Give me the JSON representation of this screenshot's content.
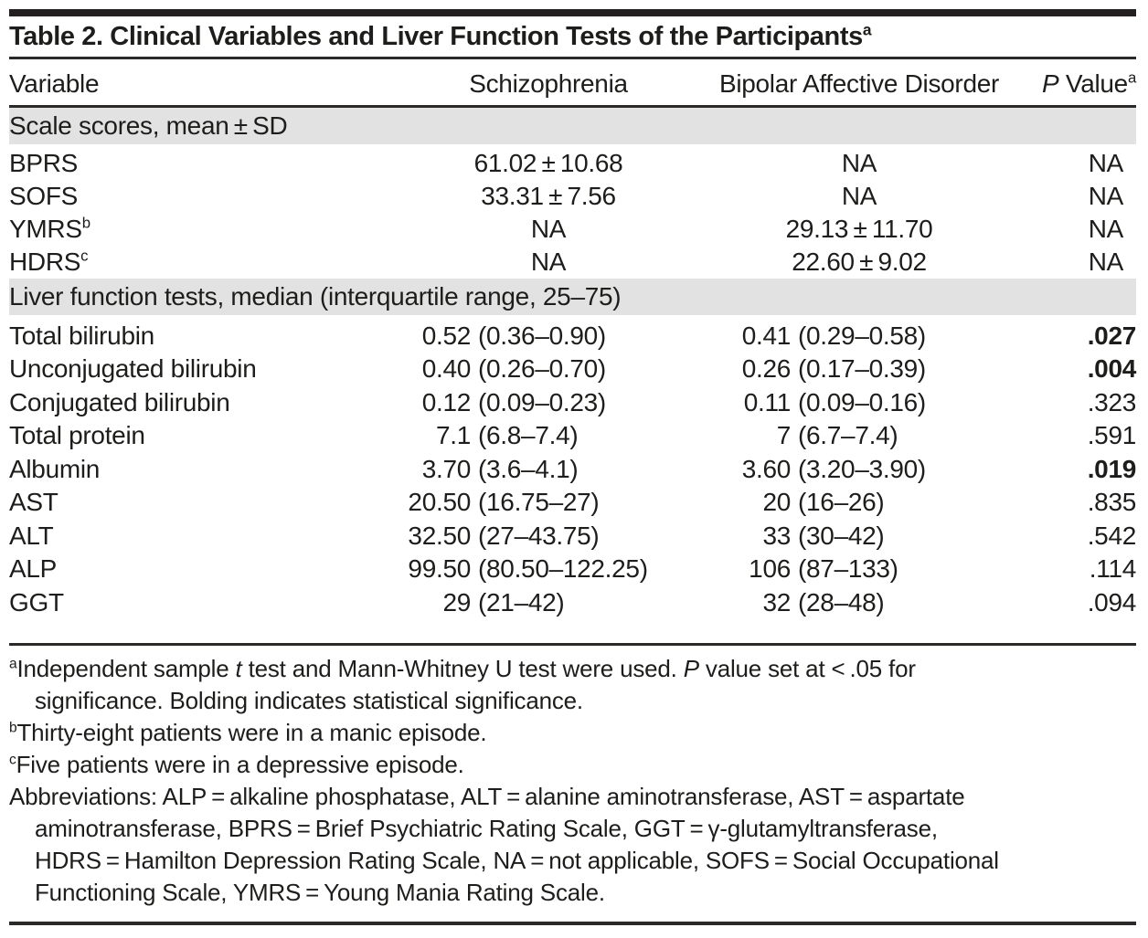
{
  "colors": {
    "ink": "#1d1d1b",
    "bar": "#231f20",
    "rule": "#2b2a28",
    "band": "#e2e2e2"
  },
  "title": {
    "text": "Table 2. Clinical Variables and Liver Function Tests of the Participants",
    "sup": "a"
  },
  "columns": {
    "variable": "Variable",
    "schizophrenia": "Schizophrenia",
    "bipolar": "Bipolar Affective Disorder",
    "p_italic": "P",
    "p_rest": " Value",
    "p_sup": "a"
  },
  "rows": [
    {
      "type": "section",
      "label": "Scale scores, mean ± SD"
    },
    {
      "variable": "BPRS",
      "schizophrenia": "61.02 ± 10.68",
      "bipolar": "NA",
      "p": "NA"
    },
    {
      "variable": "SOFS",
      "schizophrenia": "33.31 ± 7.56",
      "bipolar": "NA",
      "p": "NA"
    },
    {
      "variable": "YMRS",
      "sup": "b",
      "schizophrenia": "NA",
      "bipolar": "29.13 ± 11.70",
      "p": "NA"
    },
    {
      "variable": "HDRS",
      "sup": "c",
      "schizophrenia": "NA",
      "bipolar": "22.60 ± 9.02",
      "p": "NA"
    },
    {
      "type": "section",
      "label": "Liver function tests, median (interquartile range, 25–75)"
    },
    {
      "variable": "Total bilirubin",
      "s_med": "0.52",
      "s_rng": "(0.36–0.90)",
      "b_med": "0.41",
      "b_rng": "(0.29–0.58)",
      "p": ".027",
      "p_bold": true
    },
    {
      "variable": "Unconjugated bilirubin",
      "s_med": "0.40",
      "s_rng": "(0.26–0.70)",
      "b_med": "0.26",
      "b_rng": "(0.17–0.39)",
      "p": ".004",
      "p_bold": true
    },
    {
      "variable": "Conjugated bilirubin",
      "s_med": "0.12",
      "s_rng": "(0.09–0.23)",
      "b_med": "0.11",
      "b_rng": "(0.09–0.16)",
      "p": ".323",
      "p_bold": false
    },
    {
      "variable": "Total protein",
      "s_med": "7.1",
      "s_rng": "(6.8–7.4)",
      "b_med": "7",
      "b_rng": "(6.7–7.4)",
      "p": ".591",
      "p_bold": false
    },
    {
      "variable": "Albumin",
      "s_med": "3.70",
      "s_rng": "(3.6–4.1)",
      "b_med": "3.60",
      "b_rng": "(3.20–3.90)",
      "p": ".019",
      "p_bold": true
    },
    {
      "variable": "AST",
      "s_med": "20.50",
      "s_rng": "(16.75–27)",
      "b_med": "20",
      "b_rng": "(16–26)",
      "p": ".835",
      "p_bold": false
    },
    {
      "variable": "ALT",
      "s_med": "32.50",
      "s_rng": "(27–43.75)",
      "b_med": "33",
      "b_rng": "(30–42)",
      "p": ".542",
      "p_bold": false
    },
    {
      "variable": "ALP",
      "s_med": "99.50",
      "s_rng": "(80.50–122.25)",
      "b_med": "106",
      "b_rng": "(87–133)",
      "p": ".114",
      "p_bold": false
    },
    {
      "variable": "GGT",
      "s_med": "29",
      "s_rng": "(21–42)",
      "b_med": "32",
      "b_rng": "(28–48)",
      "p": ".094",
      "p_bold": false
    }
  ],
  "footnotes": {
    "a": {
      "sup": "a",
      "p1": "Independent sample ",
      "i1": "t",
      "p2": " test and Mann-Whitney U test were used. ",
      "i2": "P",
      "p3": " value set at < .05 for",
      "line2": "significance. Bolding indicates statistical significance."
    },
    "b": {
      "sup": "b",
      "text": "Thirty-eight patients were in a manic episode."
    },
    "c": {
      "sup": "c",
      "text": "Five patients were in a depressive episode."
    },
    "abbr": {
      "line1": "Abbreviations: ALP = alkaline phosphatase, ALT = alanine aminotransferase, AST = aspartate",
      "line2": "aminotransferase, BPRS = Brief Psychiatric Rating Scale, GGT = γ-glutamyltransferase,",
      "line3": "HDRS = Hamilton Depression Rating Scale, NA = not applicable, SOFS = Social Occupational",
      "line4": "Functioning Scale, YMRS = Young Mania Rating Scale."
    }
  }
}
